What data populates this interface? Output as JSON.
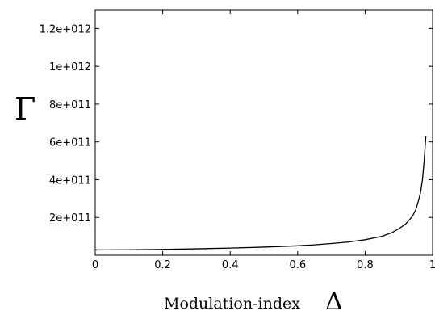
{
  "chart_data": {
    "type": "line",
    "title": "",
    "xlabel": "Modulation-index",
    "xlabel_symbol": "Δ",
    "ylabel": "",
    "ylabel_symbol": "Γ",
    "xlim": [
      0,
      1
    ],
    "ylim": [
      0,
      1300000000000.0
    ],
    "grid": false,
    "x_ticks": [
      0,
      0.2,
      0.4,
      0.6,
      0.8,
      1
    ],
    "x_tick_labels": [
      "0",
      "0.2",
      "0.4",
      "0.6",
      "0.8",
      "1"
    ],
    "y_ticks": [
      200000000000.0,
      400000000000.0,
      600000000000.0,
      800000000000.0,
      1000000000000.0,
      1200000000000.0
    ],
    "y_tick_labels": [
      "2e+011",
      "4e+011",
      "6e+011",
      "8e+011",
      "1e+012",
      "1.2e+012"
    ],
    "series": [
      {
        "color": "#000000",
        "x": [
          0.0,
          0.1,
          0.2,
          0.3,
          0.4,
          0.5,
          0.6,
          0.65,
          0.7,
          0.75,
          0.8,
          0.85,
          0.88,
          0.9,
          0.92,
          0.94,
          0.95,
          0.96,
          0.965,
          0.97,
          0.975,
          0.98
        ],
        "y": [
          28000000000.0,
          29000000000.0,
          31000000000.0,
          34000000000.0,
          38000000000.0,
          43000000000.0,
          50000000000.0,
          55000000000.0,
          62000000000.0,
          70000000000.0,
          82000000000.0,
          100000000000.0,
          120000000000.0,
          140000000000.0,
          165000000000.0,
          205000000000.0,
          240000000000.0,
          300000000000.0,
          340000000000.0,
          400000000000.0,
          500000000000.0,
          630000000000.0
        ]
      }
    ]
  }
}
